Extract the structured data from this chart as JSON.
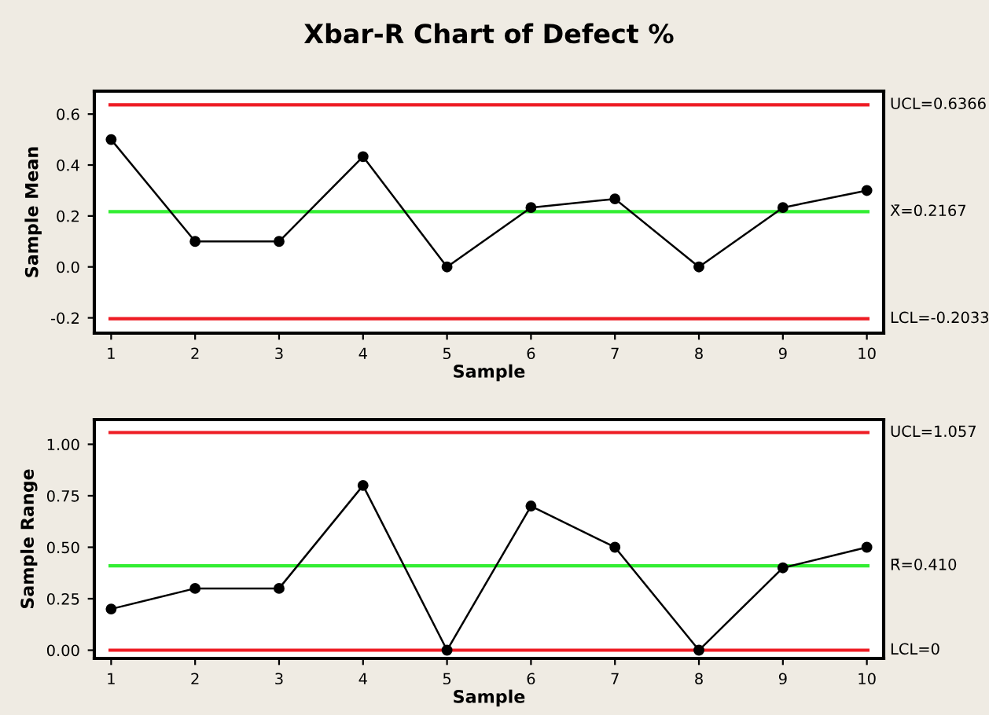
{
  "chart_data": [
    {
      "type": "line",
      "title": "Xbar-R Chart of Defect %",
      "xlabel": "Sample",
      "ylabel": "Sample Mean",
      "x": [
        1,
        2,
        3,
        4,
        5,
        6,
        7,
        8,
        9,
        10
      ],
      "series": [
        {
          "color": "#000000",
          "values": [
            0.5,
            0.1,
            0.1,
            0.433,
            0.0,
            0.233,
            0.267,
            0.0,
            0.233,
            0.3
          ]
        }
      ],
      "xlim": [
        0.8,
        10.2
      ],
      "xticks": [
        1,
        2,
        3,
        4,
        5,
        6,
        7,
        8,
        9,
        10
      ],
      "ylim": [
        -0.26,
        0.69
      ],
      "yticks": [
        {
          "value": -0.2,
          "label": "-0.2"
        },
        {
          "value": 0.0,
          "label": "0.0"
        },
        {
          "value": 0.2,
          "label": "0.2"
        },
        {
          "value": 0.4,
          "label": "0.4"
        },
        {
          "value": 0.6,
          "label": "0.6"
        }
      ],
      "ref_lines": [
        {
          "axis": "y",
          "value": 0.6366,
          "label": "UCL=0.6366",
          "color": "#ee1c24"
        },
        {
          "axis": "y",
          "value": 0.2167,
          "label": "X̄=0.2167",
          "color": "#33ee33"
        },
        {
          "axis": "y",
          "value": -0.2033,
          "label": "LCL=-0.2033",
          "color": "#ee1c24"
        }
      ],
      "marker": "circle",
      "grid": false,
      "legend": false
    },
    {
      "type": "line",
      "xlabel": "Sample",
      "ylabel": "Sample Range",
      "x": [
        1,
        2,
        3,
        4,
        5,
        6,
        7,
        8,
        9,
        10
      ],
      "series": [
        {
          "color": "#000000",
          "values": [
            0.2,
            0.3,
            0.3,
            0.8,
            0.0,
            0.7,
            0.5,
            0.0,
            0.4,
            0.5
          ]
        }
      ],
      "xlim": [
        0.8,
        10.2
      ],
      "xticks": [
        1,
        2,
        3,
        4,
        5,
        6,
        7,
        8,
        9,
        10
      ],
      "ylim": [
        -0.04,
        1.12
      ],
      "yticks": [
        {
          "value": 0.0,
          "label": "0.00"
        },
        {
          "value": 0.25,
          "label": "0.25"
        },
        {
          "value": 0.5,
          "label": "0.50"
        },
        {
          "value": 0.75,
          "label": "0.75"
        },
        {
          "value": 1.0,
          "label": "1.00"
        }
      ],
      "ref_lines": [
        {
          "axis": "y",
          "value": 1.057,
          "label": "UCL=1.057",
          "color": "#ee1c24"
        },
        {
          "axis": "y",
          "value": 0.41,
          "label": "R̄=0.410",
          "color": "#33ee33"
        },
        {
          "axis": "y",
          "value": 0,
          "label": "LCL=0",
          "color": "#ee1c24"
        }
      ],
      "marker": "circle",
      "grid": false,
      "legend": false
    }
  ]
}
